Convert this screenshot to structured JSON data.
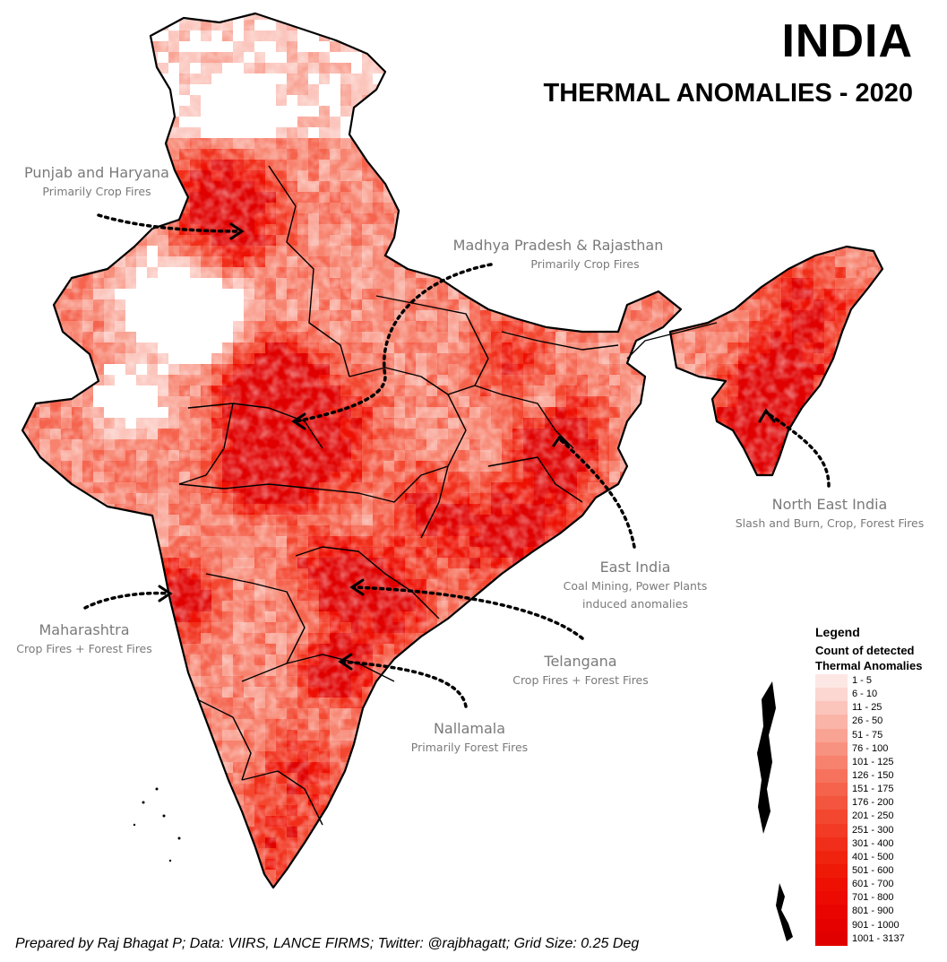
{
  "title": "INDIA",
  "subtitle": "THERMAL ANOMALIES - 2020",
  "annotations": [
    {
      "id": "punjab",
      "title": "Punjab and Haryana",
      "sub": "Primarily Crop Fires"
    },
    {
      "id": "mp",
      "title": "Madhya Pradesh & Rajasthan",
      "sub": "Primarily Crop Fires"
    },
    {
      "id": "ne",
      "title": "North East India",
      "sub": "Slash and Burn, Crop, Forest Fires"
    },
    {
      "id": "east",
      "title": "East India",
      "sub": "Coal Mining, Power Plants induced anomalies"
    },
    {
      "id": "maha",
      "title": "Maharashtra",
      "sub": "Crop Fires + Forest Fires"
    },
    {
      "id": "telangana",
      "title": "Telangana",
      "sub": "Crop Fires + Forest Fires"
    },
    {
      "id": "nallamala",
      "title": "Nallamala",
      "sub": "Primarily Forest Fires"
    }
  ],
  "legend": {
    "title": "Legend",
    "subtitle_line1": "Count of detected",
    "subtitle_line2": "Thermal Anomalies",
    "classes": [
      {
        "label": "1 - 5",
        "color": "#fde7e4"
      },
      {
        "label": "6 - 10",
        "color": "#fcd6d0"
      },
      {
        "label": "11 - 25",
        "color": "#fbc5bc"
      },
      {
        "label": "26 - 50",
        "color": "#fab4a8"
      },
      {
        "label": "51 - 75",
        "color": "#f9a394"
      },
      {
        "label": "76 - 100",
        "color": "#f89280"
      },
      {
        "label": "101 - 125",
        "color": "#f7826e"
      },
      {
        "label": "126 - 150",
        "color": "#f6725d"
      },
      {
        "label": "151 - 175",
        "color": "#f5634d"
      },
      {
        "label": "176 - 200",
        "color": "#f4553e"
      },
      {
        "label": "201 - 250",
        "color": "#f34730"
      },
      {
        "label": "251 - 300",
        "color": "#f23a24"
      },
      {
        "label": "301 - 400",
        "color": "#f12e19"
      },
      {
        "label": "401 - 500",
        "color": "#f0230f"
      },
      {
        "label": "501 - 600",
        "color": "#ef1907"
      },
      {
        "label": "601 - 700",
        "color": "#ee1003"
      },
      {
        "label": "701 - 800",
        "color": "#ec0a02"
      },
      {
        "label": "801 - 900",
        "color": "#e90401"
      },
      {
        "label": "901 - 1000",
        "color": "#e50100"
      },
      {
        "label": "1001 - 3137",
        "color": "#e00000"
      }
    ]
  },
  "credit": "Prepared by Raj Bhagat P; Data: VIIRS, LANCE FIRMS; Twitter: @rajbhagatt; Grid Size: 0.25 Deg"
}
